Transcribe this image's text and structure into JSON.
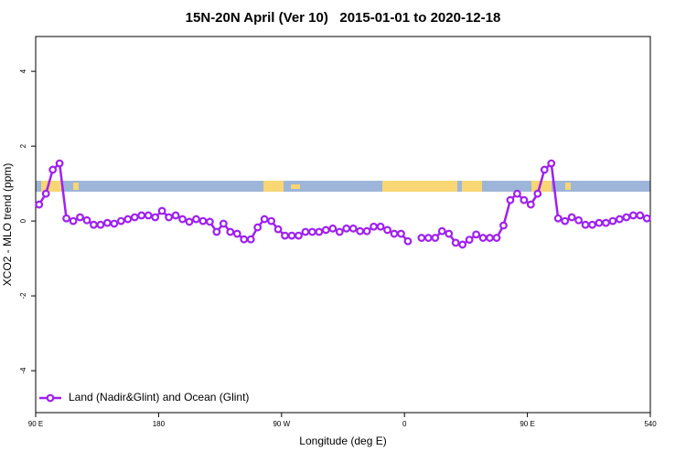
{
  "chart_data": {
    "type": "line",
    "title": "15N-20N April (Ver 10)   2015-01-01 to 2020-12-18",
    "x_label": "Longitude (deg E)",
    "y_label": "XCO2 - MLO trend (ppm)",
    "x": [
      92.5,
      97.5,
      102.5,
      107.5,
      112.5,
      117.5,
      122.5,
      127.5,
      132.5,
      137.5,
      142.5,
      147.5,
      152.5,
      157.5,
      162.5,
      167.5,
      172.5,
      177.5,
      182.5,
      187.5,
      192.5,
      197.5,
      202.5,
      207.5,
      212.5,
      217.5,
      222.5,
      227.5,
      232.5,
      237.5,
      242.5,
      247.5,
      252.5,
      257.5,
      262.5,
      267.5,
      272.5,
      277.5,
      282.5,
      287.5,
      292.5,
      297.5,
      302.5,
      307.5,
      312.5,
      317.5,
      322.5,
      327.5,
      332.5,
      337.5,
      342.5,
      347.5,
      352.5,
      357.5,
      362.5,
      367.5,
      372.5,
      377.5,
      382.5,
      387.5,
      392.5,
      397.5,
      402.5,
      407.5,
      412.5,
      417.5,
      422.5,
      427.5,
      432.5,
      437.5,
      442.5,
      447.5,
      452.5,
      457.5,
      462.5,
      467.5,
      472.5,
      477.5,
      482.5,
      487.5,
      492.5,
      497.5,
      502.5,
      507.5,
      512.5,
      517.5,
      522.5,
      527.5,
      532.5,
      537.5
    ],
    "series": [
      {
        "name": "Land (Nadir&Glint) and Ocean (Glint)",
        "color": "#a020f0",
        "values": [
          0.44,
          0.73,
          1.37,
          1.54,
          0.07,
          0,
          0.1,
          0.02,
          -0.1,
          -0.1,
          -0.05,
          -0.07,
          0,
          0.05,
          0.1,
          0.15,
          0.15,
          0.1,
          0.27,
          0.1,
          0.15,
          0.05,
          -0.02,
          0.05,
          0,
          -0.02,
          -0.29,
          -0.07,
          -0.29,
          -0.34,
          -0.49,
          -0.49,
          -0.17,
          0.05,
          0,
          -0.22,
          -0.39,
          -0.39,
          -0.39,
          -0.29,
          -0.29,
          -0.29,
          -0.24,
          -0.2,
          -0.29,
          -0.2,
          -0.2,
          -0.27,
          -0.27,
          -0.15,
          -0.15,
          -0.24,
          -0.34,
          -0.34,
          -0.54,
          null,
          -0.45,
          -0.45,
          -0.45,
          -0.27,
          -0.34,
          -0.58,
          -0.63,
          -0.5,
          -0.36,
          -0.45,
          -0.45,
          -0.45,
          -0.12,
          0.56,
          0.73,
          0.56,
          0.44,
          0.73,
          1.37,
          1.54,
          0.07,
          0,
          0.1,
          0.02,
          -0.1,
          -0.1,
          -0.05,
          -0.05,
          0,
          0.05,
          0.1,
          0.15,
          0.15,
          0.07
        ]
      }
    ],
    "xlim": [
      90,
      540
    ],
    "xticks": [
      {
        "value": 90,
        "label": "90 E"
      },
      180,
      {
        "value": 270,
        "label": "90 W"
      },
      {
        "value": 360,
        "label": "0"
      },
      {
        "value": 450,
        "label": "90 E"
      },
      540
    ],
    "ylim": [
      -5.12,
      4.93
    ],
    "yticks": [
      -4,
      -2,
      0,
      2,
      4
    ],
    "legend": "bottom-left"
  }
}
